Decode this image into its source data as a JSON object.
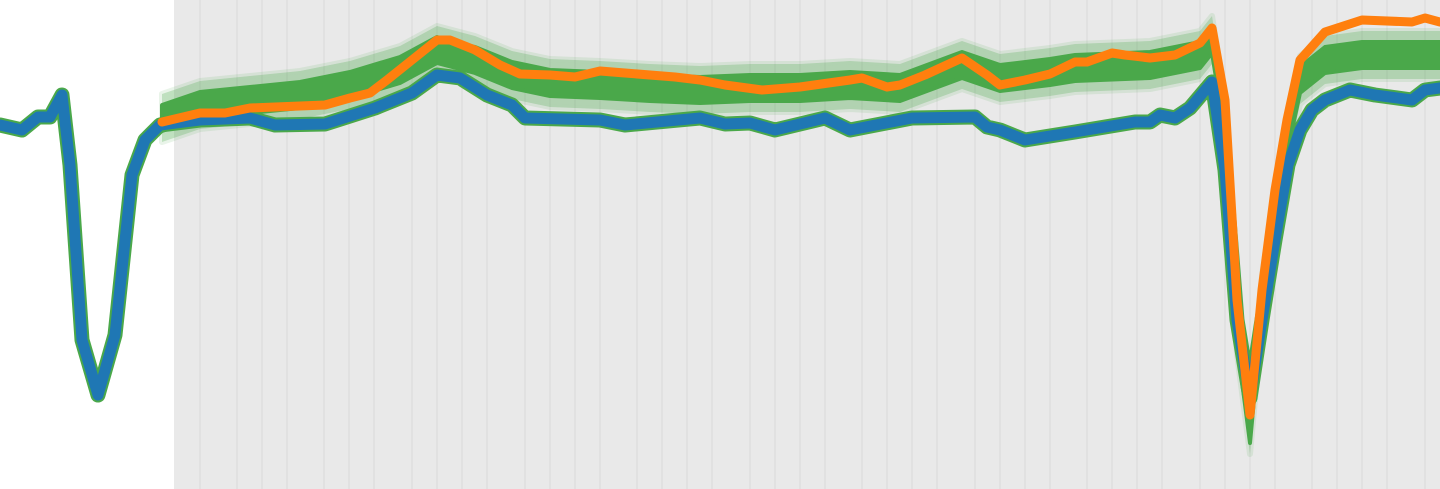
{
  "chart_data": {
    "type": "line",
    "grid": true,
    "xlim": [
      0,
      144
    ],
    "ylim": [
      -48.9,
      0
    ],
    "shaded_region_start_x": 17.4,
    "background_color": "#e9e9e9",
    "vertical_gridlines_x": [
      20,
      23.7,
      26.2,
      28.7,
      32.4,
      34.9,
      37.4,
      41.2,
      43.7,
      46.2,
      48.7,
      52.5,
      55,
      57.5,
      60,
      63.7,
      66.2,
      68.7,
      71.2,
      75,
      77.5,
      80,
      82.5,
      86.2,
      88.7,
      91.2,
      93.7,
      97.5,
      100,
      102.5,
      105,
      108.7,
      111.2,
      113.7,
      116.2,
      120,
      122.5,
      125,
      127.5,
      131.2,
      133.7,
      136.2,
      138.7,
      142.5
    ],
    "series": [
      {
        "color": "#4aa84a",
        "band_inner_halfwidth": 1.3,
        "band_outer_halfwidth": 2.4,
        "x": [
          16.2,
          20,
          25,
          30,
          35,
          40,
          43.7,
          47.5,
          51.2,
          55,
          60,
          65,
          70,
          75,
          80,
          85,
          90,
          96.2,
          100,
          105,
          107.5,
          115,
          120,
          121.2,
          122.5,
          123.7,
          125,
          126.2,
          127.5,
          128.7,
          130,
          132.5,
          136.2,
          144
        ],
        "y": [
          -11.8,
          -10.5,
          -10,
          -9.5,
          -8.5,
          -7,
          -5,
          -6,
          -7.5,
          -8.3,
          -8.5,
          -8.8,
          -9,
          -8.8,
          -8.8,
          -8.5,
          -8.8,
          -6.5,
          -7.8,
          -7.2,
          -6.8,
          -6.5,
          -5.5,
          -4,
          -12,
          -33,
          -43,
          -30,
          -21,
          -14,
          -8,
          -6,
          -5.5,
          -5.5
        ]
      },
      {
        "color": "#1f77b4",
        "x": [
          0,
          2.2,
          3.8,
          5,
          6.2,
          7,
          8.2,
          9.8,
          11.5,
          13.2,
          14.5,
          16,
          20,
          25,
          27.5,
          32.5,
          37.5,
          41.2,
          43.7,
          46,
          48.7,
          51.2,
          52.5,
          60,
          62.5,
          70,
          72.5,
          75,
          77.5,
          82.5,
          85,
          91.2,
          97.5,
          98.7,
          100,
          102.5,
          107.5,
          113.5,
          115,
          116,
          117.5,
          119,
          121.2,
          122.5,
          123.7,
          125,
          126.2,
          127.5,
          128.8,
          130,
          131.2,
          132.5,
          135,
          137.5,
          141.2,
          142.5,
          144
        ],
        "y": [
          -12.5,
          -13,
          -11.7,
          -11.7,
          -9.5,
          -16.5,
          -34,
          -39.5,
          -33.5,
          -17.5,
          -14,
          -12.5,
          -12,
          -11.8,
          -12.5,
          -12.4,
          -10.8,
          -9.3,
          -7.5,
          -7.8,
          -9.5,
          -10.5,
          -11.8,
          -12,
          -12.5,
          -11.8,
          -12.4,
          -12.3,
          -13,
          -11.8,
          -13,
          -11.8,
          -11.7,
          -12.7,
          -13,
          -14,
          -13.2,
          -12.2,
          -12.2,
          -11.5,
          -11.8,
          -10.8,
          -8.2,
          -17,
          -32,
          -39.8,
          -32,
          -24,
          -16.5,
          -13,
          -11,
          -10,
          -9,
          -9.5,
          -10,
          -9,
          -8.8
        ]
      },
      {
        "color": "#ff7f0e",
        "x": [
          16.2,
          20,
          22.5,
          25,
          27.5,
          32.5,
          35,
          37,
          38.7,
          41.2,
          43.7,
          45,
          47.5,
          50,
          52,
          55,
          57.5,
          60,
          62.5,
          67.5,
          70,
          72.5,
          76.2,
          80,
          85,
          86.2,
          88.7,
          90,
          92.5,
          96.2,
          98.7,
          100,
          102.5,
          105,
          107.5,
          108.7,
          111.2,
          112.5,
          115,
          117.5,
          120,
          121.2,
          122.5,
          123.7,
          125,
          126.2,
          127.5,
          128.7,
          130,
          132.5,
          136.2,
          141.2,
          142.5,
          144
        ],
        "y": [
          -12.2,
          -11.3,
          -11.3,
          -10.8,
          -10.7,
          -10.5,
          -9.8,
          -9.3,
          -8,
          -6,
          -4,
          -4,
          -5,
          -6.5,
          -7.4,
          -7.5,
          -7.7,
          -7.1,
          -7.3,
          -7.7,
          -8,
          -8.5,
          -9,
          -8.7,
          -8,
          -7.8,
          -8.7,
          -8.5,
          -7.5,
          -5.8,
          -7.5,
          -8.5,
          -8,
          -7.4,
          -6.2,
          -6.2,
          -5.3,
          -5.5,
          -5.8,
          -5.5,
          -4.3,
          -2.8,
          -10,
          -30,
          -41.5,
          -29,
          -19,
          -12,
          -6,
          -3.2,
          -2,
          -2.2,
          -1.8,
          -2.2
        ]
      }
    ]
  }
}
